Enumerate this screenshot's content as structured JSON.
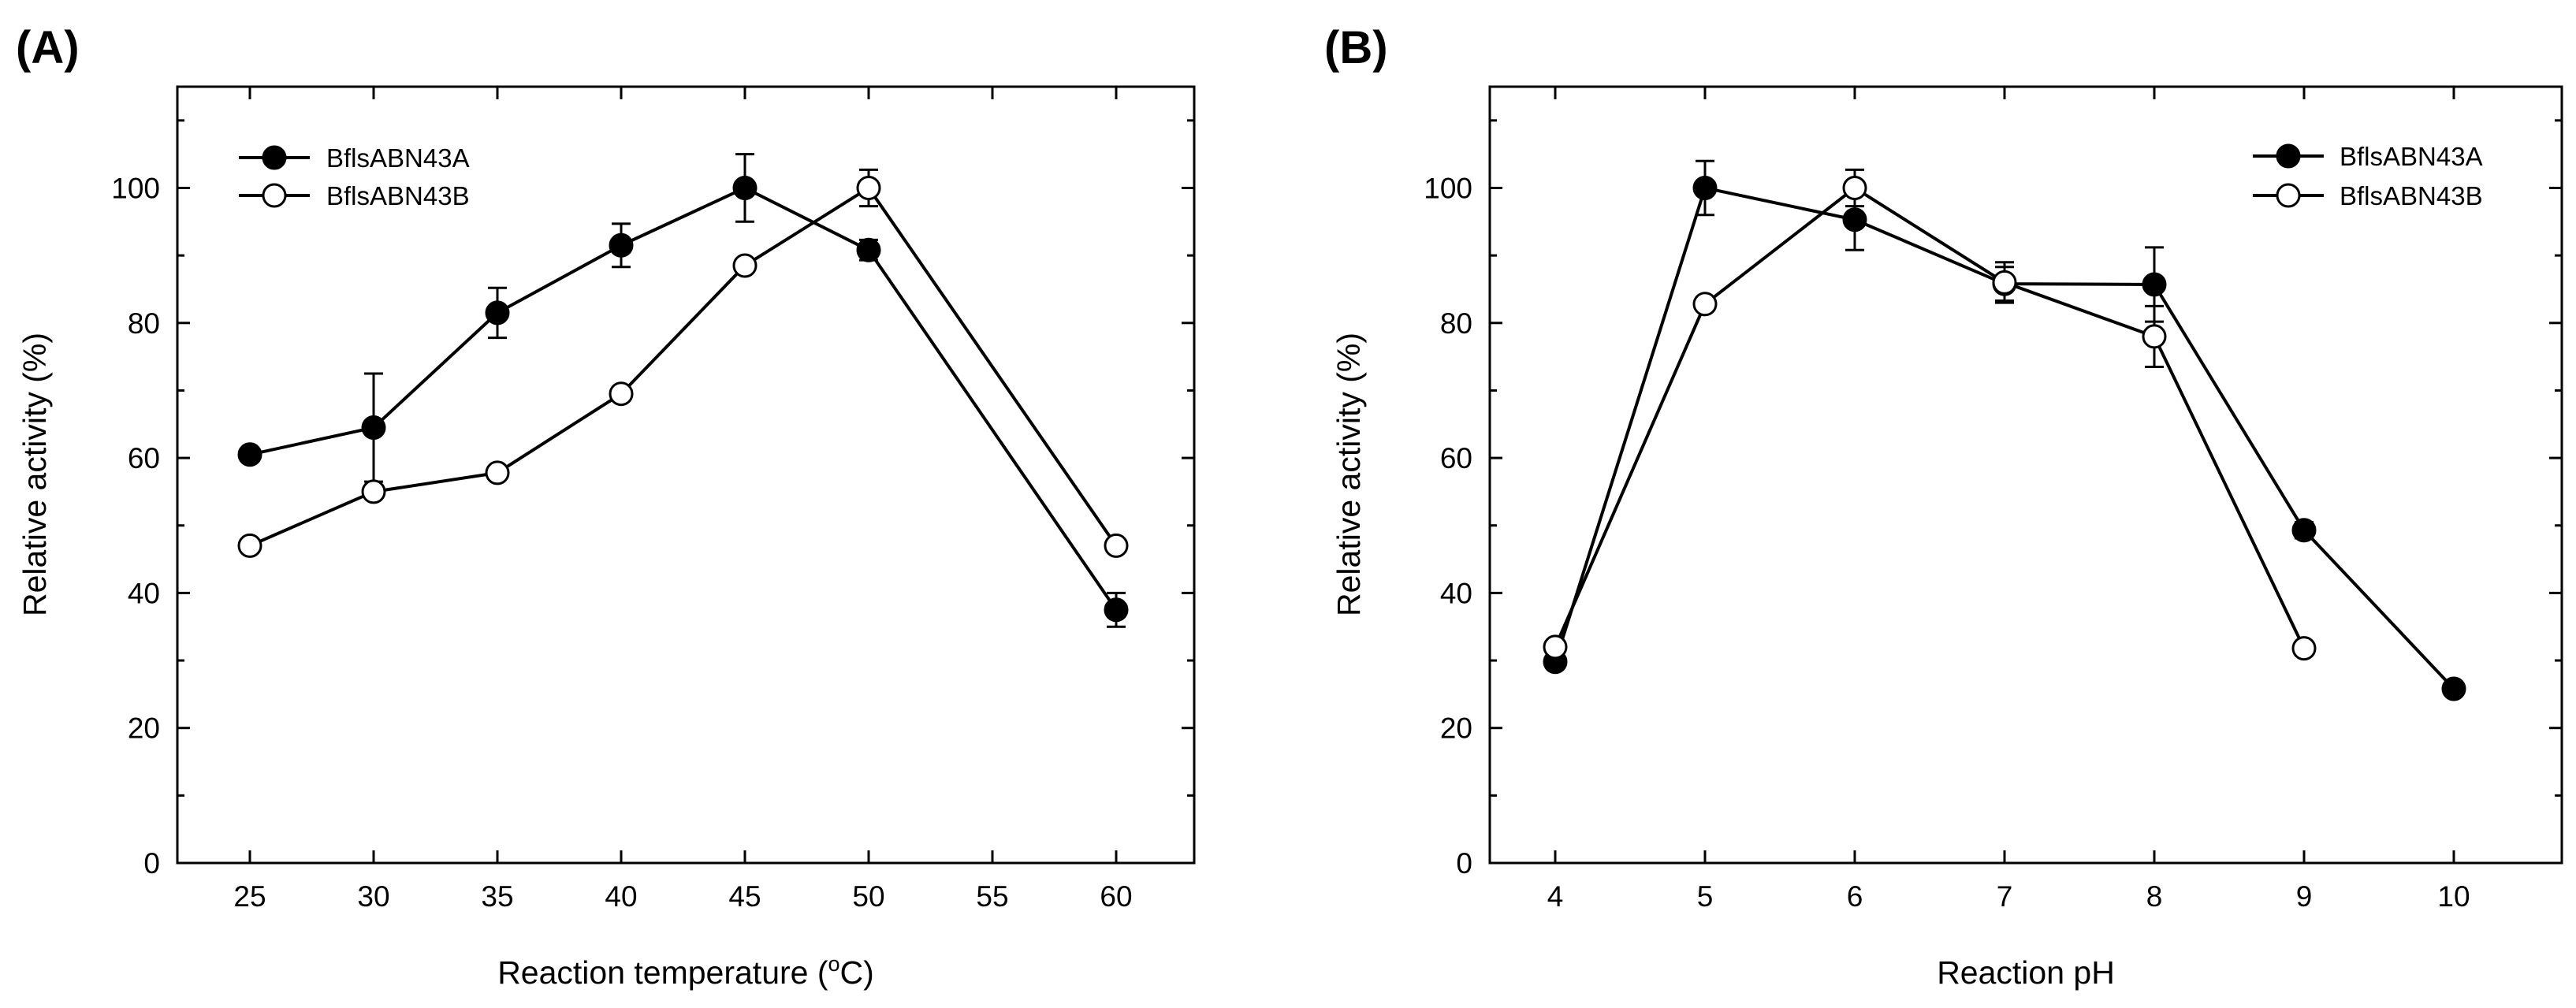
{
  "chart_data": [
    {
      "type": "line",
      "panel_label": "(A)",
      "xlabel_prefix": "Reaction temperature (",
      "xlabel_sup": "o",
      "xlabel_suffix": "C)",
      "ylabel": "Relative activity (%)",
      "ylim": [
        0,
        115
      ],
      "yticks": [
        0,
        20,
        40,
        60,
        80,
        100
      ],
      "x_categories": [
        "25",
        "30",
        "35",
        "40",
        "45",
        "50",
        "55",
        "60"
      ],
      "legend_position": "top-left",
      "series": [
        {
          "name": "BflsABN43A",
          "marker": "filled",
          "points": [
            {
              "x": 0,
              "y": 60.5,
              "err": 0.5
            },
            {
              "x": 1,
              "y": 64.5,
              "err": 8
            },
            {
              "x": 2,
              "y": 81.5,
              "err": 3.7
            },
            {
              "x": 3,
              "y": 91.5,
              "err": 3.2
            },
            {
              "x": 4,
              "y": 100,
              "err": 5
            },
            {
              "x": 5,
              "y": 90.8,
              "err": 1.5
            },
            {
              "x": 7,
              "y": 37.5,
              "err": 2.5
            }
          ]
        },
        {
          "name": "BflsABN43B",
          "marker": "open",
          "points": [
            {
              "x": 0,
              "y": 47,
              "err": 0.5
            },
            {
              "x": 1,
              "y": 55,
              "err": 1
            },
            {
              "x": 2,
              "y": 57.8,
              "err": 0.5
            },
            {
              "x": 3,
              "y": 69.5,
              "err": 0.8
            },
            {
              "x": 4,
              "y": 88.5,
              "err": 0.8
            },
            {
              "x": 5,
              "y": 100,
              "err": 2.7
            },
            {
              "x": 7,
              "y": 47,
              "err": 0.5
            }
          ]
        }
      ]
    },
    {
      "type": "line",
      "panel_label": "(B)",
      "xlabel": "Reaction pH",
      "ylabel": "Relative activity (%)",
      "ylim": [
        0,
        115
      ],
      "yticks": [
        0,
        20,
        40,
        60,
        80,
        100
      ],
      "x_categories": [
        "4",
        "5",
        "6",
        "7",
        "8",
        "9",
        "10"
      ],
      "legend_position": "top-right",
      "series": [
        {
          "name": "BflsABN43A",
          "marker": "filled",
          "points": [
            {
              "x": 0,
              "y": 29.8,
              "err": 0.5
            },
            {
              "x": 1,
              "y": 100,
              "err": 4
            },
            {
              "x": 2,
              "y": 95.3,
              "err": 4.5
            },
            {
              "x": 3,
              "y": 85.8,
              "err": 2.5
            },
            {
              "x": 4,
              "y": 85.7,
              "err": 5.5
            },
            {
              "x": 5,
              "y": 49.3,
              "err": 1.2
            },
            {
              "x": 6,
              "y": 25.8,
              "err": 0.5
            }
          ]
        },
        {
          "name": "BflsABN43B",
          "marker": "open",
          "points": [
            {
              "x": 0,
              "y": 32,
              "err": 0.5
            },
            {
              "x": 1,
              "y": 82.8,
              "err": 0.8
            },
            {
              "x": 2,
              "y": 100,
              "err": 2.7
            },
            {
              "x": 3,
              "y": 86,
              "err": 3
            },
            {
              "x": 4,
              "y": 78,
              "err": 4.5
            },
            {
              "x": 5,
              "y": 31.8,
              "err": 1
            },
            {
              "x": 6,
              "y": null,
              "err": 0
            }
          ]
        }
      ]
    }
  ]
}
